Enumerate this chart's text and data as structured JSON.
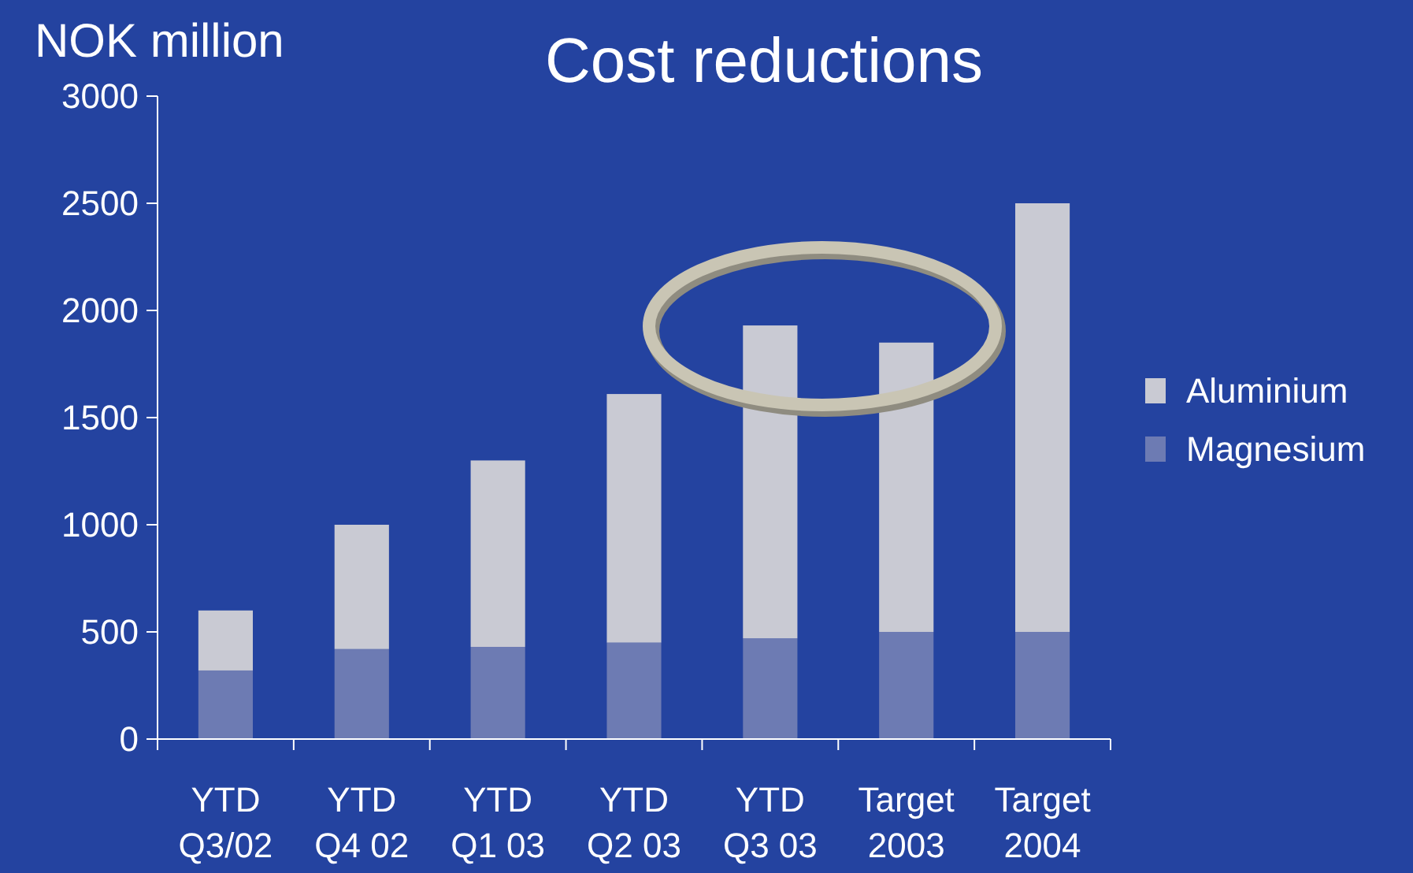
{
  "chart_data": {
    "type": "bar",
    "title": "Cost reductions",
    "ylabel": "NOK million",
    "stacked": true,
    "categories": [
      "YTD\nQ3/02",
      "YTD\nQ4 02",
      "YTD\nQ1 03",
      "YTD\nQ2 03",
      "YTD\nQ3 03",
      "Target\n2003",
      "Target\n2004"
    ],
    "series": [
      {
        "name": "Magnesium",
        "color": "#6d7bb3",
        "values": [
          320,
          420,
          430,
          450,
          470,
          500,
          500
        ]
      },
      {
        "name": "Aluminium",
        "color": "#c9cad3",
        "values": [
          280,
          580,
          870,
          1160,
          1460,
          1350,
          2000
        ]
      }
    ],
    "ylim": [
      0,
      3000
    ],
    "yticks": [
      0,
      500,
      1000,
      1500,
      2000,
      2500,
      3000
    ],
    "grid": false,
    "legend": "right"
  }
}
